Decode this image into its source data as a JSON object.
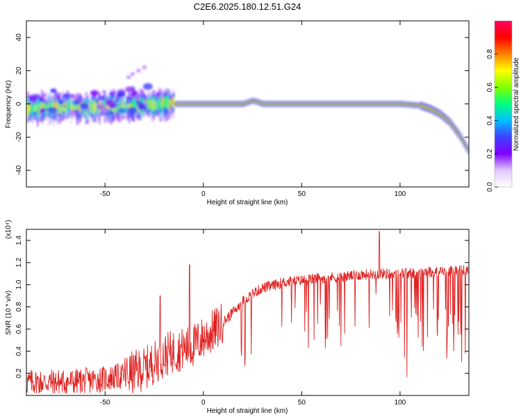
{
  "title": "C2E6.2025.180.12.51.G24",
  "colorbar": {
    "label": "Normalized spectral amplitude",
    "ticks": [
      "0.0",
      "0.2",
      "0.4",
      "0.6",
      "0.8"
    ],
    "tick_values": [
      0.0,
      0.2,
      0.4,
      0.6,
      0.8
    ],
    "range": [
      0,
      1
    ],
    "colors": [
      "#ffffff",
      "#e0c8ff",
      "#8000ff",
      "#4040ff",
      "#00c0ff",
      "#00ff80",
      "#80ff00",
      "#ffff00",
      "#ff8000",
      "#ff0000",
      "#ff0060"
    ]
  },
  "chart_data": [
    {
      "type": "heatmap",
      "xlabel": "Height of straight line (km)",
      "ylabel": "Frequency (Hz)",
      "xlim": [
        -90,
        135
      ],
      "ylim": [
        -50,
        50
      ],
      "xticks": [
        -50,
        0,
        50,
        100
      ],
      "yticks": [
        -40,
        -20,
        0,
        20,
        40
      ],
      "xtick_labels": [
        "-50",
        "0",
        "50",
        "100"
      ],
      "ytick_labels": [
        "-40",
        "-20",
        "0",
        "20",
        "40"
      ],
      "ridge": {
        "x": [
          -90,
          -70,
          -50,
          -30,
          -20,
          0,
          20,
          25,
          30,
          50,
          80,
          100,
          110,
          115,
          120,
          125,
          130,
          135
        ],
        "frequency": [
          -3,
          -2,
          -2,
          -1,
          0,
          0,
          0,
          2,
          0,
          0,
          0,
          0,
          -1,
          -3,
          -6,
          -11,
          -19,
          -29
        ]
      }
    },
    {
      "type": "line",
      "xlabel": "Height of straight line (km)",
      "ylabel": "SNR (10 * v/v)",
      "yscale_note": "(x10⁴)",
      "xlim": [
        -90,
        135
      ],
      "ylim": [
        0,
        1.5
      ],
      "xticks": [
        -50,
        0,
        50,
        100
      ],
      "yticks": [
        0.2,
        0.4,
        0.6,
        0.8,
        1.0,
        1.2,
        1.4
      ],
      "xtick_labels": [
        "-50",
        "0",
        "50",
        "100"
      ],
      "ytick_labels": [
        "0.2",
        "0.4",
        "0.6",
        "0.8",
        "1.0",
        "1.2",
        "1.4"
      ],
      "color": "#e02020",
      "series": [
        {
          "x": [
            -90,
            -80,
            -70,
            -60,
            -50,
            -40,
            -30,
            -25,
            -20,
            -15,
            -10,
            -5,
            0,
            5,
            10,
            15,
            20,
            25,
            30,
            35,
            40,
            45,
            50,
            55,
            60,
            70,
            80,
            90,
            100,
            110,
            120,
            130,
            135
          ],
          "y": [
            0.12,
            0.12,
            0.12,
            0.13,
            0.15,
            0.18,
            0.24,
            0.3,
            0.36,
            0.4,
            0.42,
            0.45,
            0.52,
            0.58,
            0.66,
            0.75,
            0.85,
            0.92,
            0.97,
            0.99,
            1.02,
            1.03,
            1.04,
            1.05,
            1.06,
            1.07,
            1.09,
            1.1,
            1.1,
            1.11,
            1.12,
            1.13,
            1.13
          ]
        }
      ]
    }
  ]
}
